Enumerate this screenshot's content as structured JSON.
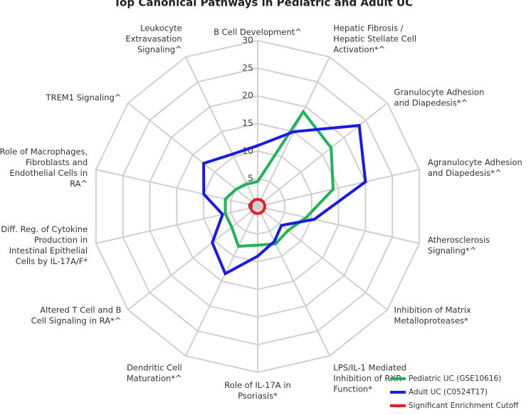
{
  "chart_data": {
    "type": "radar",
    "title": "Top Canonical Pathways in Pediatric and Adult UC",
    "categories": [
      "B Cell Development^",
      "Hepatic Fibrosis / Hepatic Stellate Cell Activation*^",
      "Granulocyte Adhesion and Diapedesis*^",
      "Agranulocyte Adhesion and Diapedesis*^",
      "Atherosclerosis Signaling*^",
      "Inhibition of Matrix Metalloproteases*",
      "LPS/IL-1 Mediated Inhibition of RXR Function*",
      "Role of IL-17A in Psoriasis*",
      "Dendritic Cell Maturation*^",
      "Altered T Cell and B Cell Signaling in RA*^",
      "Diff. Reg. of Cytokine Production in Intestinal Epithelial Cells by IL-17A/F*",
      "Role of Macrophages, Fibroblasts and Endothelial Cells in RA^",
      "TREM1 Signaling^",
      "Leukocyte Extravasation Signaling^"
    ],
    "series": [
      {
        "name": "Pediatric UC (GSE10616)",
        "color": "#22b35a",
        "values": [
          4.5,
          19,
          17,
          14,
          9,
          7,
          7.5,
          7,
          8,
          6,
          6,
          6,
          5,
          4.5
        ]
      },
      {
        "name": "Adult UC (C0524T17)",
        "color": "#1a1ae6",
        "values": [
          11,
          15,
          23.5,
          20,
          10.5,
          5.5,
          7,
          9,
          13.5,
          10.5,
          6.5,
          10,
          12.5,
          10.5
        ]
      },
      {
        "name": "Significant Enrichment Cutoff",
        "color": "#e62020",
        "values": [
          1.3,
          1.3,
          1.3,
          1.3,
          1.3,
          1.3,
          1.3,
          1.3,
          1.3,
          1.3,
          1.3,
          1.3,
          1.3,
          1.3
        ]
      }
    ],
    "ylim": [
      0,
      30
    ],
    "yticks": [
      0,
      5,
      10,
      15,
      20,
      25,
      30
    ],
    "grid": true
  }
}
